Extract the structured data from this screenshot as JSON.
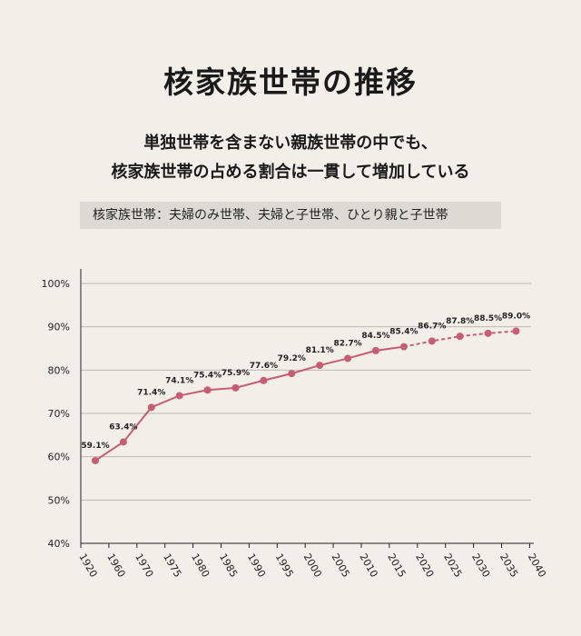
{
  "header": {
    "title": "核家族世帯の推移",
    "subtitle_lines": [
      "単独世帯を含まない親族世帯の中でも、",
      "核家族世帯の占める割合は一貫して増加している"
    ],
    "note": "核家族世帯：夫婦のみ世帯、夫婦と子世帯、ひとり親と子世帯"
  },
  "colors": {
    "series": "#c95b73",
    "grid": "#bdbab2",
    "background": "#f2efe8"
  },
  "chart_data": {
    "type": "line",
    "title": "核家族世帯の推移",
    "xlabel": "",
    "ylabel": "",
    "ylim": [
      40,
      100
    ],
    "xlim": [
      1920,
      2040
    ],
    "grid": true,
    "yticks": [
      "40%",
      "50%",
      "60%",
      "70%",
      "80%",
      "90%",
      "100%"
    ],
    "xticks": [
      "1920",
      "1960",
      "1970",
      "1975",
      "1980",
      "1985",
      "1990",
      "1995",
      "2000",
      "2005",
      "2010",
      "2015",
      "2020",
      "2025",
      "2030",
      "2035",
      "2040"
    ],
    "series": [
      {
        "x": [
          "1920",
          "1960",
          "1970",
          "1975",
          "1980",
          "1985",
          "1990",
          "1995",
          "2000",
          "2005",
          "2010",
          "2015",
          "2020",
          "2025",
          "2030",
          "2035"
        ],
        "values": [
          59.1,
          63.4,
          71.4,
          74.1,
          75.4,
          75.9,
          77.6,
          79.2,
          81.1,
          82.7,
          84.5,
          85.4,
          86.7,
          87.8,
          88.5,
          89.0
        ],
        "labels": [
          "59.1%",
          "63.4%",
          "71.4%",
          "74.1%",
          "75.4%",
          "75.9%",
          "77.6%",
          "79.2%",
          "81.1%",
          "82.7%",
          "84.5%",
          "85.4%",
          "86.7%",
          "87.8%",
          "88.5%",
          "89.0%"
        ],
        "projected_from": "2015"
      }
    ]
  }
}
